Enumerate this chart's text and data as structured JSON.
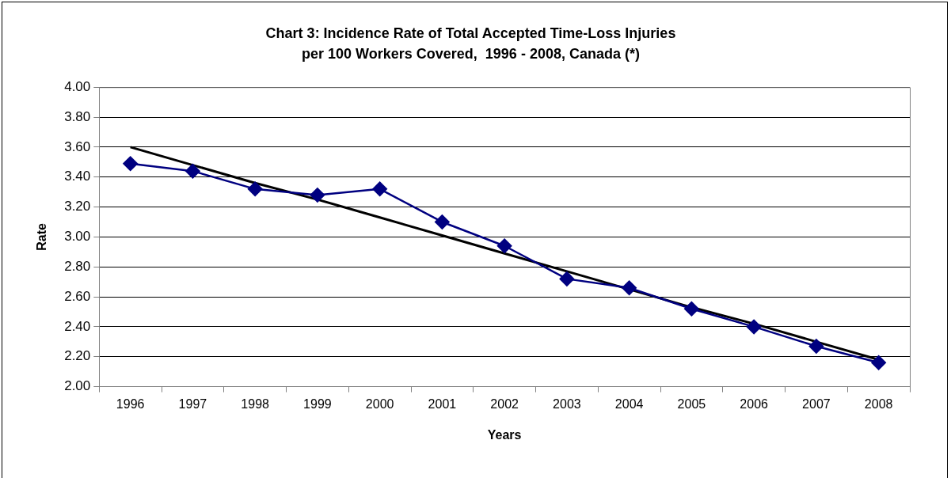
{
  "chart_data": {
    "type": "line",
    "title": "Chart 3: Incidence Rate of Total Accepted Time-Loss Injuries\nper 100 Workers Covered,  1996 - 2008, Canada (*)",
    "xlabel": "Years",
    "ylabel": "Rate",
    "categories": [
      "1996",
      "1997",
      "1998",
      "1999",
      "2000",
      "2001",
      "2002",
      "2003",
      "2004",
      "2005",
      "2006",
      "2007",
      "2008"
    ],
    "series": [
      {
        "color": "#000080",
        "values": [
          3.49,
          3.44,
          3.32,
          3.28,
          3.32,
          3.1,
          2.94,
          2.72,
          2.66,
          2.52,
          2.4,
          2.27,
          2.16
        ]
      },
      {
        "type": "line",
        "color": "#000000",
        "marker": "none",
        "values": [
          3.6,
          3.48,
          3.36,
          3.25,
          3.13,
          3.01,
          2.89,
          2.77,
          2.65,
          2.53,
          2.42,
          2.3,
          2.18
        ]
      }
    ],
    "ylim": [
      2,
      4
    ],
    "yticks": [
      {
        "value": 2,
        "label": "2.00"
      },
      {
        "value": 2.2,
        "label": "2.20"
      },
      {
        "value": 2.4,
        "label": "2.40"
      },
      {
        "value": 2.6,
        "label": "2.60"
      },
      {
        "value": 2.8,
        "label": "2.80"
      },
      {
        "value": 3,
        "label": "3.00"
      },
      {
        "value": 3.2,
        "label": "3.20"
      },
      {
        "value": 3.4,
        "label": "3.40"
      },
      {
        "value": 3.6,
        "label": "3.60"
      },
      {
        "value": 3.8,
        "label": "3.80"
      },
      {
        "value": 4,
        "label": "4.00"
      }
    ],
    "grid": "y",
    "legend": false,
    "marker": "diamond",
    "line_style": "solid"
  }
}
